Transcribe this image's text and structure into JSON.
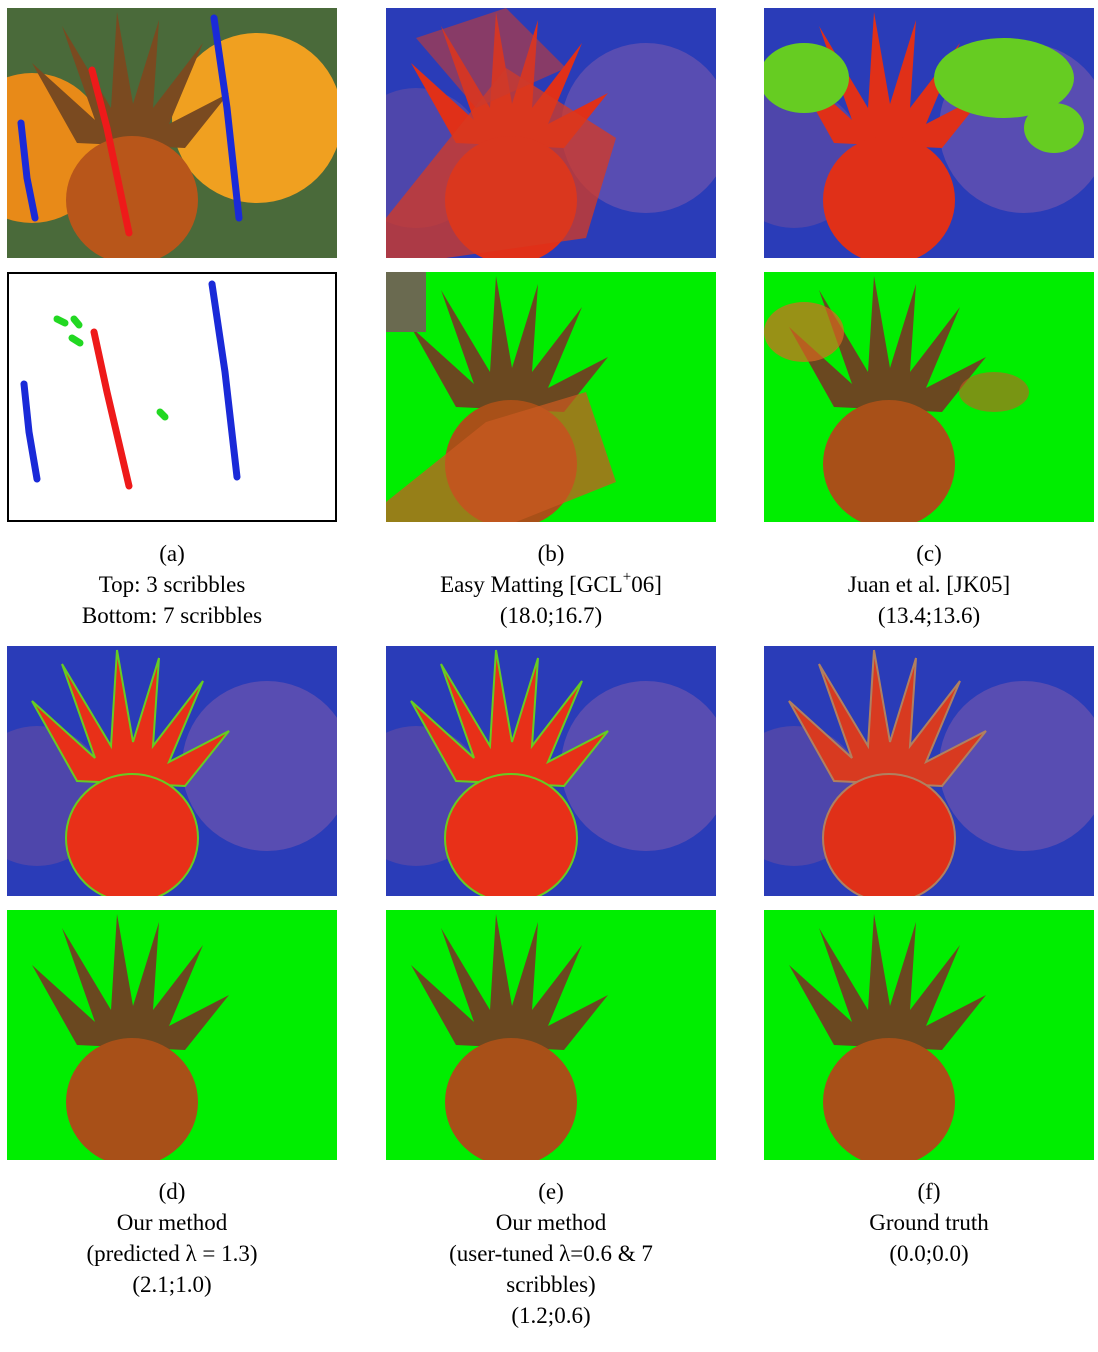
{
  "panels": [
    {
      "label": "(a)",
      "lines": [
        "Top: 3 scribbles",
        "Bottom: 7 scribbles"
      ]
    },
    {
      "label": "(b)",
      "title": {
        "text": "Easy Matting [GCL",
        "sup": "+",
        "tail": "06]"
      },
      "lines": [
        "(18.0;16.7)"
      ]
    },
    {
      "label": "(c)",
      "lines": [
        "Juan et al. [JK05]",
        "(13.4;13.6)"
      ]
    },
    {
      "label": "(d)",
      "lines": [
        "Our method",
        "(predicted λ = 1.3)",
        "(2.1;1.0)"
      ]
    },
    {
      "label": "(e)",
      "lines": [
        "Our method",
        "(user-tuned λ=0.6 & 7",
        "scribbles)",
        "(1.2;0.6)"
      ]
    },
    {
      "label": "(f)",
      "lines": [
        "Ground truth",
        "(0.0;0.0)"
      ]
    }
  ]
}
